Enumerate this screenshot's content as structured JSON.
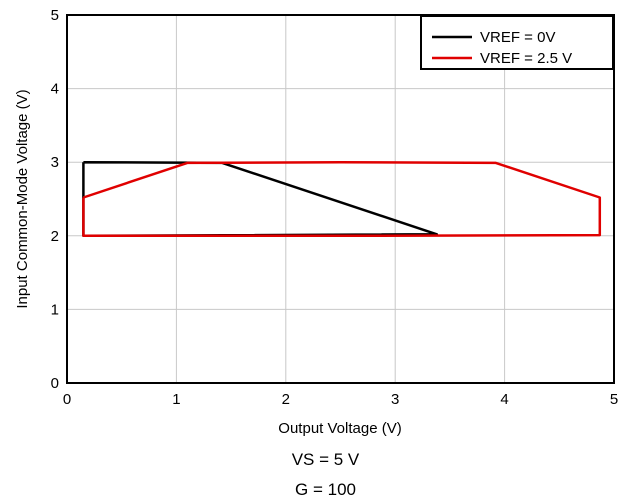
{
  "chart_data": {
    "type": "line",
    "xlabel": "Output Voltage (V)",
    "ylabel": "Input Common-Mode Voltage (V)",
    "xlim": [
      0,
      5
    ],
    "ylim": [
      0,
      5
    ],
    "xticks": [
      "0",
      "1",
      "2",
      "3",
      "4",
      "5"
    ],
    "yticks": [
      "0",
      "1",
      "2",
      "3",
      "4",
      "5"
    ],
    "grid": true,
    "legend_position": "top-right",
    "series": [
      {
        "name": "VREF = 0V",
        "color": "#000000",
        "points": [
          [
            0.15,
            3.0
          ],
          [
            1.42,
            2.99
          ],
          [
            3.38,
            2.02
          ],
          [
            0.15,
            2.0
          ],
          [
            0.15,
            3.0
          ]
        ]
      },
      {
        "name": "VREF = 2.5 V",
        "color": "#e00000",
        "points": [
          [
            0.15,
            2.52
          ],
          [
            1.1,
            2.99
          ],
          [
            2.5,
            3.0
          ],
          [
            3.92,
            2.99
          ],
          [
            4.87,
            2.52
          ],
          [
            4.87,
            2.01
          ],
          [
            2.5,
            2.0
          ],
          [
            0.15,
            2.0
          ],
          [
            0.15,
            2.52
          ]
        ]
      }
    ]
  },
  "notes": {
    "line1": "VS = 5 V",
    "line2": "G = 100"
  }
}
